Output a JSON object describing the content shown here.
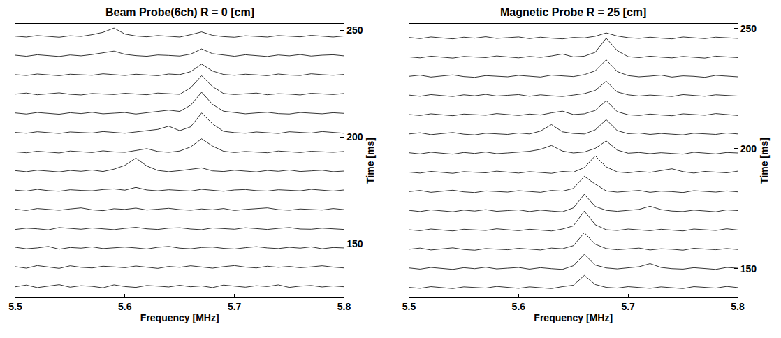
{
  "chart_data": [
    {
      "type": "line",
      "title": "Beam Probe(6ch) R = 0 [cm]",
      "x_label": "Frequency [MHz]",
      "y_label": "Time [ms]",
      "color": "#000000",
      "grid": false,
      "xlim": [
        5.5,
        5.8
      ],
      "xticks": [
        5.5,
        5.6,
        5.7,
        5.8
      ],
      "ylim": [
        125,
        253
      ],
      "yticks": [
        150,
        200,
        250
      ],
      "x": [
        5.5,
        5.51,
        5.52,
        5.53,
        5.54,
        5.55,
        5.56,
        5.57,
        5.58,
        5.59,
        5.6,
        5.61,
        5.62,
        5.63,
        5.64,
        5.65,
        5.66,
        5.67,
        5.68,
        5.69,
        5.7,
        5.71,
        5.72,
        5.73,
        5.74,
        5.75,
        5.76,
        5.77,
        5.78,
        5.79,
        5.8
      ],
      "series": [
        {
          "values": [
            130,
            130.8,
            129.6,
            130.4,
            131,
            129.8,
            130.5,
            130.2,
            129.5,
            130.9,
            130.1,
            129.7,
            130.6,
            130.3,
            129.9,
            130.7,
            130,
            130.4,
            129.6,
            130.8,
            130.2,
            129.8,
            130.5,
            130.1,
            130.9,
            129.7,
            130.3,
            130.6,
            129.9,
            130.4,
            130
          ]
        },
        {
          "values": [
            139.4,
            138.7,
            139.9,
            139.2,
            138.6,
            139.8,
            139.1,
            138.8,
            139.6,
            139.3,
            138.9,
            139.7,
            139.2,
            138.6,
            139.5,
            139.1,
            139.8,
            139.3,
            138.7,
            139.4,
            139.9,
            139.2,
            138.8,
            139.6,
            139.1,
            139.5,
            138.9,
            139.3,
            139.8,
            139.2,
            138.8
          ]
        },
        {
          "values": [
            148.5,
            147.8,
            148.2,
            148.9,
            147.6,
            148.4,
            148.1,
            148.7,
            147.9,
            148.3,
            148.6,
            148.2,
            147.7,
            148.5,
            148.9,
            148.1,
            147.8,
            148.4,
            148.6,
            148.0,
            147.7,
            148.3,
            148.8,
            148.2,
            147.9,
            148.5,
            148.1,
            148.7,
            147.8,
            148.4,
            148.2
          ]
        },
        {
          "values": [
            156.8,
            157.4,
            157.1,
            156.6,
            157.7,
            157.2,
            156.9,
            157.5,
            157.0,
            156.7,
            157.3,
            157.8,
            157.1,
            156.8,
            157.4,
            157.6,
            157.0,
            156.7,
            157.5,
            157.2,
            156.9,
            157.6,
            157.1,
            156.8,
            157.3,
            157.7,
            157.0,
            156.9,
            157.4,
            157.2,
            156.8
          ]
        },
        {
          "values": [
            166.3,
            165.7,
            166.6,
            166.1,
            165.8,
            166.4,
            166.9,
            166.0,
            165.6,
            166.5,
            166.2,
            166.8,
            165.9,
            166.3,
            166.7,
            166.1,
            165.8,
            166.4,
            166.0,
            166.6,
            165.7,
            166.2,
            166.5,
            166.9,
            166.1,
            165.8,
            166.4,
            166.2,
            165.9,
            166.6,
            166.1
          ]
        },
        {
          "values": [
            175.2,
            174.8,
            175.6,
            175.0,
            174.7,
            175.4,
            175.1,
            174.9,
            175.5,
            175.8,
            175.2,
            176.5,
            175.3,
            174.9,
            175.4,
            175.0,
            174.8,
            175.6,
            175.1,
            174.7,
            175.3,
            175.5,
            175.0,
            174.8,
            175.4,
            175.2,
            174.9,
            175.6,
            175.1,
            174.8,
            175.3
          ]
        },
        {
          "values": [
            184.3,
            183.8,
            184.5,
            184.1,
            183.7,
            184.4,
            184.0,
            184.6,
            183.9,
            185.0,
            186.8,
            190.2,
            186.5,
            184.4,
            183.8,
            184.3,
            184.9,
            185.6,
            184.2,
            183.9,
            184.5,
            184.1,
            183.7,
            184.4,
            184.0,
            184.6,
            183.9,
            184.2,
            184.5,
            183.8,
            184.1
          ]
        },
        {
          "values": [
            193.1,
            192.7,
            193.4,
            193.0,
            192.6,
            193.5,
            193.2,
            192.8,
            193.6,
            193.1,
            192.9,
            193.8,
            194.6,
            193.3,
            192.9,
            193.5,
            195.4,
            199.2,
            195.8,
            193.4,
            192.8,
            193.3,
            193.0,
            192.7,
            193.5,
            193.1,
            192.8,
            193.4,
            193.2,
            192.9,
            193.3
          ]
        },
        {
          "values": [
            202.2,
            201.8,
            202.5,
            202.0,
            201.7,
            202.4,
            202.1,
            201.9,
            202.6,
            202.3,
            201.8,
            202.4,
            202.9,
            203.6,
            205.1,
            203.0,
            204.8,
            211.3,
            206.2,
            202.7,
            202.1,
            201.8,
            202.4,
            202.0,
            201.7,
            202.5,
            202.2,
            201.9,
            202.6,
            202.1,
            201.8
          ]
        },
        {
          "values": [
            211.3,
            210.8,
            211.5,
            211.1,
            210.7,
            211.4,
            211.0,
            211.6,
            210.9,
            211.2,
            211.5,
            210.8,
            211.4,
            211.9,
            212.6,
            212.0,
            214.9,
            221.0,
            215.3,
            212.1,
            211.4,
            210.9,
            211.3,
            211.6,
            211.0,
            210.8,
            211.5,
            211.2,
            210.9,
            211.4,
            211.1
          ]
        },
        {
          "values": [
            220.1,
            220.6,
            219.8,
            220.3,
            220.7,
            220.0,
            219.7,
            220.4,
            220.2,
            219.9,
            220.5,
            220.1,
            219.8,
            220.6,
            220.3,
            220.0,
            223.1,
            228.7,
            223.6,
            220.4,
            219.9,
            220.2,
            220.6,
            219.8,
            220.3,
            220.1,
            219.7,
            220.5,
            220.2,
            219.9,
            220.4
          ]
        },
        {
          "values": [
            229.2,
            228.8,
            229.5,
            229.0,
            228.7,
            229.4,
            229.1,
            228.9,
            229.6,
            229.3,
            228.8,
            229.4,
            229.0,
            228.7,
            229.5,
            229.2,
            230.6,
            234.1,
            230.9,
            229.3,
            228.9,
            229.4,
            229.1,
            228.7,
            229.5,
            229.0,
            228.8,
            229.6,
            229.2,
            228.9,
            229.3
          ]
        },
        {
          "values": [
            238.3,
            237.8,
            238.5,
            238.1,
            237.7,
            238.4,
            238.0,
            238.6,
            239.3,
            240.2,
            238.7,
            238.1,
            237.8,
            238.4,
            238.2,
            237.9,
            238.8,
            241.2,
            239.0,
            238.3,
            237.8,
            238.5,
            238.1,
            237.7,
            238.4,
            238.0,
            238.6,
            237.9,
            238.3,
            238.5,
            238.0
          ]
        },
        {
          "values": [
            247.2,
            246.8,
            247.5,
            247.0,
            246.7,
            247.4,
            247.1,
            247.9,
            249.0,
            251.0,
            248.2,
            247.3,
            246.9,
            247.5,
            247.1,
            246.8,
            247.9,
            249.2,
            247.6,
            247.0,
            246.7,
            247.4,
            247.1,
            246.8,
            247.5,
            247.2,
            246.9,
            247.6,
            247.1,
            246.8,
            247.3
          ]
        }
      ]
    },
    {
      "type": "line",
      "title": "Magnetic Probe R = 25 [cm]",
      "x_label": "Frequency [MHz]",
      "y_label": "Time [ms]",
      "color": "#000000",
      "grid": false,
      "xlim": [
        5.5,
        5.8
      ],
      "xticks": [
        5.5,
        5.6,
        5.7,
        5.8
      ],
      "ylim": [
        138,
        252
      ],
      "yticks": [
        150,
        200,
        250
      ],
      "x": [
        5.5,
        5.51,
        5.52,
        5.53,
        5.54,
        5.55,
        5.56,
        5.57,
        5.58,
        5.59,
        5.6,
        5.61,
        5.62,
        5.63,
        5.64,
        5.65,
        5.66,
        5.67,
        5.68,
        5.69,
        5.7,
        5.71,
        5.72,
        5.73,
        5.74,
        5.75,
        5.76,
        5.77,
        5.78,
        5.79,
        5.8
      ],
      "series": [
        {
          "values": [
            142.2,
            141.8,
            142.5,
            142.0,
            141.7,
            142.4,
            142.1,
            141.9,
            142.6,
            142.3,
            141.8,
            142.4,
            142.0,
            141.7,
            142.5,
            143.1,
            147.2,
            143.4,
            142.2,
            141.9,
            142.5,
            142.1,
            141.8,
            142.4,
            142.0,
            141.7,
            142.5,
            142.2,
            141.9,
            142.6,
            142.1
          ]
        },
        {
          "values": [
            150.3,
            149.8,
            150.5,
            150.1,
            149.7,
            150.4,
            150.0,
            150.6,
            149.9,
            150.2,
            150.5,
            149.8,
            150.4,
            150.0,
            149.7,
            151.2,
            156.0,
            151.5,
            150.3,
            149.9,
            150.4,
            150.8,
            152.1,
            150.5,
            150.0,
            149.8,
            150.4,
            150.1,
            149.7,
            150.5,
            150.2
          ]
        },
        {
          "values": [
            158.1,
            158.6,
            157.8,
            158.3,
            158.7,
            158.0,
            157.7,
            158.4,
            158.2,
            157.9,
            158.5,
            158.1,
            157.8,
            158.6,
            158.3,
            159.6,
            165.0,
            160.2,
            158.4,
            157.9,
            158.2,
            158.6,
            157.8,
            158.3,
            158.1,
            157.7,
            158.5,
            158.2,
            157.9,
            158.4,
            158.0
          ]
        },
        {
          "values": [
            166.2,
            165.8,
            166.5,
            166.0,
            165.7,
            166.4,
            166.1,
            165.9,
            166.6,
            166.3,
            165.8,
            166.4,
            166.0,
            165.7,
            166.5,
            167.8,
            174.0,
            168.3,
            166.2,
            165.9,
            166.5,
            166.1,
            165.8,
            166.4,
            166.0,
            165.7,
            166.5,
            166.2,
            165.9,
            166.6,
            166.1
          ]
        },
        {
          "values": [
            174.3,
            173.8,
            174.5,
            174.1,
            173.7,
            174.4,
            174.0,
            174.6,
            173.9,
            174.2,
            174.5,
            173.8,
            174.4,
            174.0,
            173.7,
            175.3,
            181.0,
            175.9,
            174.3,
            173.9,
            174.4,
            174.7,
            176.0,
            174.6,
            174.0,
            173.8,
            174.4,
            174.1,
            173.7,
            174.5,
            174.2
          ]
        },
        {
          "values": [
            182.1,
            182.6,
            181.8,
            182.3,
            182.7,
            182.0,
            181.7,
            182.4,
            182.2,
            181.9,
            182.5,
            182.1,
            181.8,
            182.6,
            182.3,
            183.4,
            188.5,
            185.2,
            182.4,
            181.9,
            182.2,
            182.6,
            181.8,
            182.3,
            182.1,
            181.7,
            182.5,
            182.2,
            181.9,
            182.4,
            182.0
          ]
        },
        {
          "values": [
            190.2,
            189.8,
            190.5,
            190.0,
            189.7,
            190.4,
            190.1,
            189.9,
            190.6,
            190.3,
            189.8,
            190.4,
            190.0,
            189.7,
            190.5,
            190.2,
            192.1,
            197.0,
            192.4,
            190.3,
            189.9,
            190.5,
            190.1,
            190.8,
            191.6,
            190.4,
            189.8,
            190.5,
            190.2,
            189.9,
            190.6
          ]
        },
        {
          "values": [
            198.3,
            197.8,
            198.5,
            198.1,
            197.7,
            198.4,
            198.0,
            198.6,
            197.9,
            198.2,
            198.5,
            198.9,
            199.7,
            201.3,
            199.0,
            198.2,
            198.6,
            200.1,
            203.2,
            199.4,
            198.1,
            198.4,
            197.9,
            198.3,
            198.0,
            197.7,
            198.5,
            198.1,
            197.8,
            198.4,
            198.2
          ]
        },
        {
          "values": [
            206.1,
            206.6,
            205.8,
            206.3,
            206.7,
            206.0,
            205.7,
            206.4,
            206.2,
            205.9,
            206.5,
            206.1,
            207.3,
            210.0,
            207.0,
            206.3,
            206.1,
            207.8,
            212.1,
            207.5,
            206.2,
            206.5,
            205.9,
            206.3,
            206.0,
            205.7,
            206.4,
            206.2,
            205.9,
            206.5,
            206.1
          ]
        },
        {
          "values": [
            214.2,
            213.8,
            214.5,
            214.0,
            213.7,
            214.4,
            214.1,
            213.9,
            214.6,
            214.3,
            213.8,
            214.4,
            214.0,
            214.9,
            215.6,
            214.2,
            214.5,
            215.9,
            220.0,
            215.4,
            214.1,
            213.8,
            214.4,
            214.0,
            213.7,
            214.5,
            214.2,
            213.9,
            214.6,
            214.1,
            213.8
          ]
        },
        {
          "values": [
            222.3,
            221.8,
            222.5,
            222.1,
            221.7,
            222.4,
            222.0,
            222.6,
            221.9,
            222.2,
            222.5,
            221.8,
            222.4,
            222.0,
            221.7,
            222.3,
            222.9,
            224.2,
            228.1,
            223.6,
            222.4,
            221.9,
            222.3,
            222.0,
            221.7,
            222.5,
            222.1,
            221.8,
            222.4,
            222.2,
            221.9
          ]
        },
        {
          "values": [
            230.1,
            230.6,
            229.8,
            230.3,
            230.7,
            230.0,
            229.7,
            230.4,
            230.2,
            229.9,
            230.5,
            230.1,
            229.8,
            230.6,
            230.3,
            230.0,
            230.8,
            232.4,
            237.0,
            232.1,
            230.4,
            229.9,
            230.2,
            230.6,
            229.8,
            230.3,
            230.1,
            229.7,
            230.5,
            230.2,
            229.9
          ]
        },
        {
          "values": [
            238.2,
            237.8,
            238.5,
            238.0,
            237.7,
            238.4,
            238.1,
            237.9,
            238.6,
            238.3,
            237.8,
            238.4,
            238.0,
            238.6,
            239.4,
            238.2,
            238.5,
            240.1,
            246.0,
            240.8,
            238.3,
            237.9,
            238.5,
            238.1,
            237.8,
            238.4,
            238.0,
            237.7,
            238.5,
            238.2,
            237.9
          ]
        },
        {
          "values": [
            246.3,
            245.8,
            246.5,
            246.1,
            245.7,
            246.4,
            246.0,
            246.6,
            245.9,
            246.2,
            246.5,
            245.8,
            246.4,
            246.0,
            245.7,
            246.3,
            246.1,
            246.8,
            248.2,
            246.9,
            246.2,
            245.9,
            246.4,
            246.0,
            245.7,
            246.5,
            246.1,
            245.8,
            246.4,
            246.2,
            245.9
          ]
        }
      ]
    }
  ]
}
